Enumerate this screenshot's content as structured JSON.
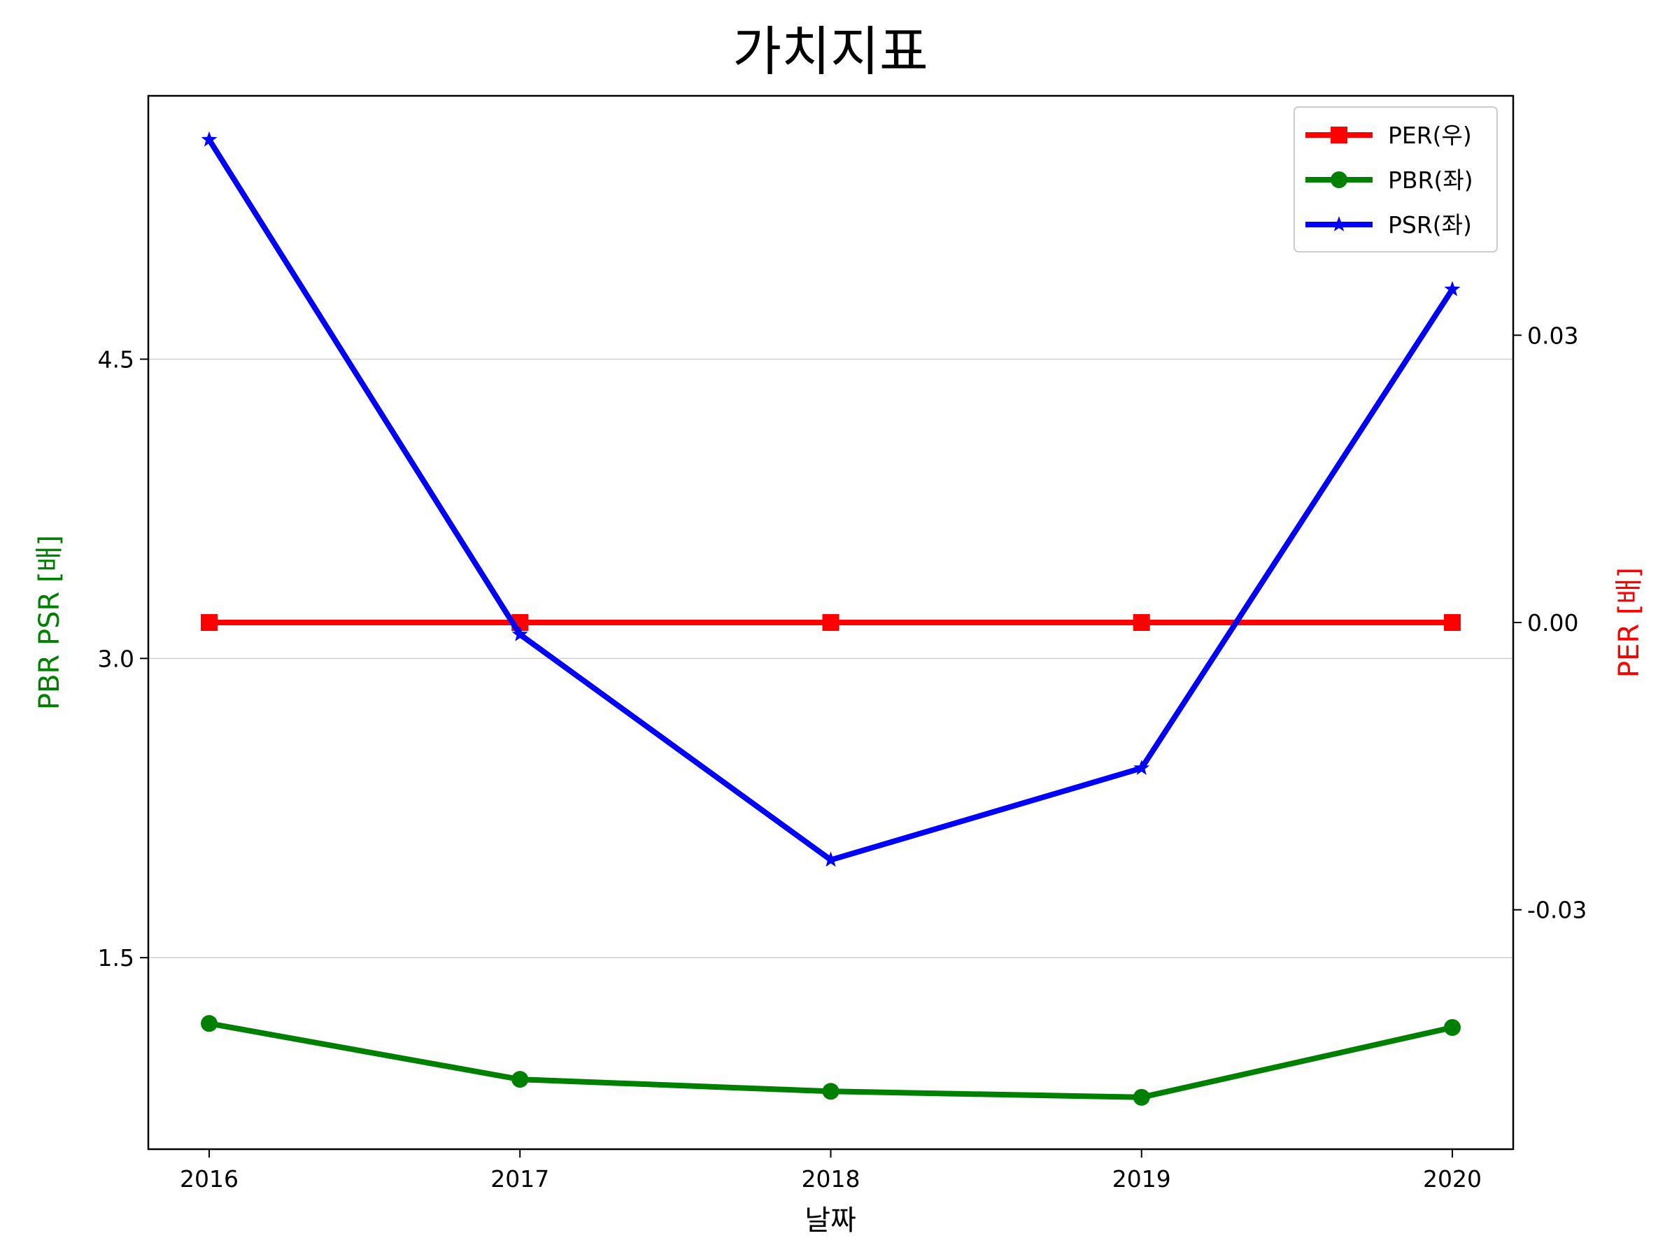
{
  "chart_data": {
    "type": "line",
    "title": "가치지표",
    "xlabel": "날짜",
    "ylabel_left": "PBR PSR [배]",
    "ylabel_right": "PER [배]",
    "ylabel_left_color": "#008000",
    "ylabel_right_color": "#ff0000",
    "x": [
      "2016",
      "2017",
      "2018",
      "2019",
      "2020"
    ],
    "y_left_ticks": [
      "1.5",
      "3.0",
      "4.5"
    ],
    "y_left_tick_values": [
      1.5,
      3.0,
      4.5
    ],
    "y_right_ticks": [
      "-0.03",
      "0.00",
      "0.03"
    ],
    "y_right_tick_values": [
      -0.03,
      0.0,
      0.03
    ],
    "ylim_left": [
      0.54,
      5.82
    ],
    "ylim_right": [
      -0.055,
      0.055
    ],
    "grid": "horizontal-left-axis",
    "legend_position": "top-right",
    "series": [
      {
        "name": "PER(우)",
        "axis": "right",
        "color": "#ff0000",
        "marker": "square",
        "values": [
          0.0,
          0.0,
          0.0,
          0.0,
          0.0
        ]
      },
      {
        "name": "PBR(좌)",
        "axis": "left",
        "color": "#008000",
        "marker": "circle",
        "values": [
          1.17,
          0.89,
          0.83,
          0.8,
          1.15
        ]
      },
      {
        "name": "PSR(좌)",
        "axis": "left",
        "color": "#0000ff",
        "marker": "star",
        "values": [
          5.6,
          3.12,
          1.99,
          2.45,
          4.85
        ]
      }
    ]
  }
}
